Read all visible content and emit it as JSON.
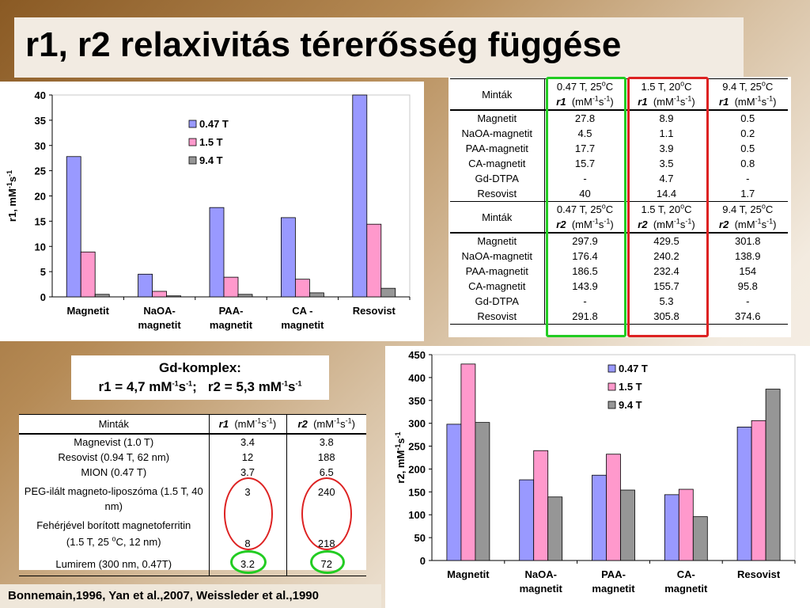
{
  "title": "r1, r2 relaxivitás térerősség függése",
  "colors": {
    "s047": "#9999ff",
    "s15": "#ff99cc",
    "s94": "#969696",
    "green": "#22cc22",
    "red": "#dd2222"
  },
  "chart_data": [
    {
      "type": "bar",
      "categories": [
        "Magnetit",
        "NaOA-magnetit",
        "PAA-magnetit",
        "CA -magnetit",
        "Resovist"
      ],
      "category_lines": [
        [
          "Magnetit"
        ],
        [
          "NaOA-",
          "magnetit"
        ],
        [
          "PAA-",
          "magnetit"
        ],
        [
          "CA -",
          "magnetit"
        ],
        [
          "Resovist"
        ]
      ],
      "series": [
        {
          "name": "0.47 T",
          "values": [
            27.8,
            4.5,
            17.7,
            15.7,
            40
          ]
        },
        {
          "name": "1.5 T",
          "values": [
            8.9,
            1.1,
            3.9,
            3.5,
            14.4
          ]
        },
        {
          "name": "9.4 T",
          "values": [
            0.5,
            0.2,
            0.5,
            0.8,
            1.7
          ]
        }
      ],
      "ylabel": "r1, mM-1s-1",
      "ylim": [
        0,
        40
      ],
      "yticks": [
        "0",
        "5",
        "10",
        "15",
        "20",
        "25",
        "30",
        "35",
        "40"
      ],
      "grid": false,
      "legend": "top-right"
    },
    {
      "type": "bar",
      "categories": [
        "Magnetit",
        "NaOA-magnetit",
        "PAA-magnetit",
        "CA-magnetit",
        "Resovist"
      ],
      "category_lines": [
        [
          "Magnetit"
        ],
        [
          "NaOA-",
          "magnetit"
        ],
        [
          "PAA-",
          "magnetit"
        ],
        [
          "CA-",
          "magnetit"
        ],
        [
          "Resovist"
        ]
      ],
      "series": [
        {
          "name": "0.47 T",
          "values": [
            297.9,
            176.4,
            186.5,
            143.9,
            291.8
          ]
        },
        {
          "name": "1.5 T",
          "values": [
            429.5,
            240.2,
            232.4,
            155.7,
            305.8
          ]
        },
        {
          "name": "9.4 T",
          "values": [
            301.8,
            138.9,
            154,
            95.8,
            374.6
          ]
        }
      ],
      "ylabel": "r2, mM-1s-1",
      "ylim": [
        0,
        450
      ],
      "yticks": [
        "0",
        "50",
        "100",
        "150",
        "200",
        "250",
        "300",
        "350",
        "400",
        "450"
      ],
      "grid": false,
      "legend": "top-right"
    }
  ],
  "table_top": {
    "col_label": "Minták",
    "cols": [
      "0.47 T, 25",
      "1.5 T, 20",
      "9.4 T, 25"
    ],
    "deg": "o",
    "deg_unit": "C",
    "r1_label": "r1",
    "r2_label": "r2",
    "unit": "(mM",
    "unit_exp1": "-1",
    "unit_s": "s",
    "unit_exp2": "-1",
    "unit_close": ")",
    "rows_r1": [
      [
        "Magnetit",
        "27.8",
        "8.9",
        "0.5"
      ],
      [
        "NaOA-magnetit",
        "4.5",
        "1.1",
        "0.2"
      ],
      [
        "PAA-magnetit",
        "17.7",
        "3.9",
        "0.5"
      ],
      [
        "CA-magnetit",
        "15.7",
        "3.5",
        "0.8"
      ],
      [
        "Gd-DTPA",
        "-",
        "4.7",
        "-"
      ],
      [
        "Resovist",
        "40",
        "14.4",
        "1.7"
      ]
    ],
    "rows_r2": [
      [
        "Magnetit",
        "297.9",
        "429.5",
        "301.8"
      ],
      [
        "NaOA-magnetit",
        "176.4",
        "240.2",
        "138.9"
      ],
      [
        "PAA-magnetit",
        "186.5",
        "232.4",
        "154"
      ],
      [
        "CA-magnetit",
        "143.9",
        "155.7",
        "95.8"
      ],
      [
        "Gd-DTPA",
        "-",
        "5.3",
        "-"
      ],
      [
        "Resovist",
        "291.8",
        "305.8",
        "374.6"
      ]
    ]
  },
  "gd_box": {
    "line1": "Gd-komplex:",
    "r1_text": "r1 = 4,7 mM",
    "r2_text": "r2 = 5,3 mM",
    "exp": "-1",
    "s": "s",
    "sep": ";   "
  },
  "table_bottom": {
    "header": [
      "Minták",
      "r1",
      "r2"
    ],
    "unit": "(mM-1s-1)",
    "rows": [
      [
        "Magnevist (1.0 T)",
        "3.4",
        "3.8"
      ],
      [
        "Resovist (0.94 T, 62 nm)",
        "12",
        "188"
      ],
      [
        "MION (0.47 T)",
        "3.7",
        "6.5"
      ],
      [
        "PEG-ilált magneto-liposzóma (1.5 T, 40 nm)",
        "3",
        "240"
      ],
      [
        "Fehérjével borított magnetoferritin",
        "8",
        "218"
      ],
      [
        "Lumirem (300 nm, 0.47T)",
        "3.2",
        "72"
      ]
    ],
    "ferritin_line2": "(1.5 T, 25 ",
    "ferritin_line2_end": "C, 12 nm)"
  },
  "references": "Bonnemain,1996, Yan et al.,2007, Weissleder et al.,1990"
}
